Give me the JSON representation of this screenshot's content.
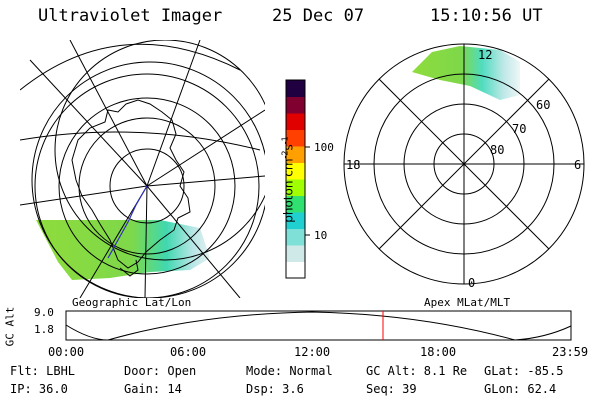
{
  "header": {
    "instrument": "Ultraviolet Imager",
    "date": "25 Dec 07",
    "time": "15:10:56 UT"
  },
  "colorbar": {
    "unit_label": "photon cm",
    "unit_sup1": "-2",
    "unit_mid": "s",
    "unit_sup2": "-1",
    "tick_labels": [
      "100",
      "10"
    ],
    "colors": [
      "#ffffff",
      "#cfe8e8",
      "#7fe0d8",
      "#20d0d0",
      "#30e070",
      "#a0ff00",
      "#ffff00",
      "#ffa000",
      "#ff4000",
      "#e00000",
      "#800030",
      "#200040"
    ]
  },
  "maps": {
    "left_caption": "Geographic Lat/Lon",
    "right_caption": "Apex MLat/MLT",
    "mlt_labels": {
      "top": "12",
      "left": "18",
      "right": "6",
      "bottom": "0"
    },
    "mlat_labels": [
      "60",
      "70",
      "80"
    ]
  },
  "timeline": {
    "y_axis_label": "GC Alt",
    "y_ticks": [
      "9.0",
      "1.8"
    ],
    "x_ticks": [
      "00:00",
      "06:00",
      "12:00",
      "18:00",
      "23:59"
    ],
    "current_marker_time": "15:10:56",
    "marker_color": "#ff0000"
  },
  "info": {
    "flt": "Flt: LBHL",
    "ip": "IP: 36.0",
    "door": "Door: Open",
    "gain": "Gain: 14",
    "mode": "Mode: Normal",
    "dsp": "Dsp:    3.6",
    "gc_alt": "GC Alt: 8.1 Re",
    "seq": "Seq: 39",
    "glat": "GLat: -85.5",
    "glon": "GLon:  62.4"
  }
}
